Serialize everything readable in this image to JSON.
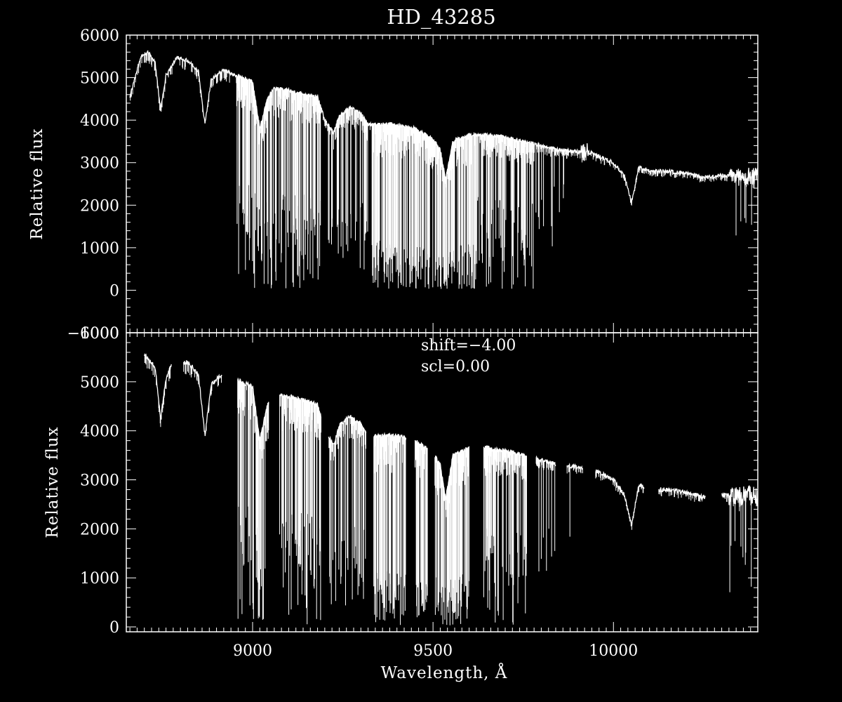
{
  "chart_data": [
    {
      "type": "line",
      "panel": "top",
      "title": "HD_43285",
      "xlabel": "",
      "ylabel": "Relative flux",
      "xlim": [
        8650,
        10400
      ],
      "ylim": [
        -1000,
        6000
      ],
      "y_tick_labels": [
        "6000",
        "5000",
        "4000",
        "3000",
        "2000",
        "1000",
        "0",
        "−1000"
      ],
      "y_ticks": [
        6000,
        5000,
        4000,
        3000,
        2000,
        1000,
        0,
        -1000
      ],
      "x_ticks": [
        9000,
        9500,
        10000
      ],
      "grid": false,
      "color": "#ffffff",
      "series": [
        {
          "continuum": [
            [
              8660,
              4550
            ],
            [
              8690,
              5500
            ],
            [
              8710,
              5600
            ],
            [
              8730,
              5350
            ],
            [
              8745,
              4250
            ],
            [
              8760,
              5050
            ],
            [
              8790,
              5480
            ],
            [
              8820,
              5400
            ],
            [
              8850,
              5150
            ],
            [
              8868,
              3900
            ],
            [
              8885,
              4950
            ],
            [
              8920,
              5180
            ],
            [
              8955,
              5050
            ],
            [
              9000,
              4900
            ],
            [
              9020,
              3800
            ],
            [
              9040,
              4500
            ],
            [
              9060,
              4750
            ],
            [
              9100,
              4700
            ],
            [
              9150,
              4600
            ],
            [
              9180,
              4550
            ],
            [
              9200,
              4000
            ],
            [
              9225,
              3700
            ],
            [
              9240,
              4100
            ],
            [
              9270,
              4300
            ],
            [
              9300,
              4150
            ],
            [
              9320,
              3900
            ],
            [
              9350,
              3900
            ],
            [
              9400,
              3900
            ],
            [
              9450,
              3800
            ],
            [
              9500,
              3550
            ],
            [
              9520,
              3300
            ],
            [
              9535,
              2600
            ],
            [
              9555,
              3500
            ],
            [
              9600,
              3650
            ],
            [
              9650,
              3650
            ],
            [
              9700,
              3600
            ],
            [
              9750,
              3500
            ],
            [
              9800,
              3400
            ],
            [
              9850,
              3300
            ],
            [
              9910,
              3250
            ],
            [
              9930,
              3250
            ],
            [
              9960,
              3150
            ],
            [
              10000,
              3000
            ],
            [
              10030,
              2700
            ],
            [
              10050,
              2050
            ],
            [
              10070,
              2900
            ],
            [
              10100,
              2800
            ],
            [
              10150,
              2800
            ],
            [
              10200,
              2750
            ],
            [
              10250,
              2650
            ],
            [
              10300,
              2700
            ],
            [
              10350,
              2650
            ],
            [
              10400,
              2700
            ]
          ],
          "gaps": [],
          "noisy_segments": [
            [
              9910,
              9930
            ],
            [
              10320,
              10400
            ]
          ]
        }
      ]
    },
    {
      "type": "line",
      "panel": "bottom",
      "title": "",
      "xlabel": "Wavelength, Å",
      "ylabel": "Relative flux",
      "xlim": [
        8650,
        10400
      ],
      "ylim": [
        -100,
        6000
      ],
      "y_tick_labels": [
        "6000",
        "5000",
        "4000",
        "3000",
        "2000",
        "1000",
        "0"
      ],
      "y_ticks": [
        6000,
        5000,
        4000,
        3000,
        2000,
        1000,
        0
      ],
      "x_tick_labels": [
        "9000",
        "9500",
        "10000"
      ],
      "x_ticks": [
        9000,
        9500,
        10000
      ],
      "grid": false,
      "color": "#ffffff",
      "annotations": [
        "shift=−4.00",
        "scl=0.00"
      ],
      "series": [
        {
          "continuum": [
            [
              8700,
              5550
            ],
            [
              8730,
              5300
            ],
            [
              8745,
              4250
            ],
            [
              8760,
              5050
            ],
            [
              8775,
              5350
            ],
            [
              8820,
              5400
            ],
            [
              8850,
              5150
            ],
            [
              8868,
              3900
            ],
            [
              8885,
              4950
            ],
            [
              8920,
              5180
            ],
            [
              8955,
              5050
            ],
            [
              9000,
              4900
            ],
            [
              9020,
              3800
            ],
            [
              9040,
              4500
            ],
            [
              9060,
              4750
            ],
            [
              9100,
              4700
            ],
            [
              9150,
              4600
            ],
            [
              9180,
              4550
            ],
            [
              9200,
              4000
            ],
            [
              9225,
              3700
            ],
            [
              9240,
              4100
            ],
            [
              9270,
              4300
            ],
            [
              9300,
              4150
            ],
            [
              9320,
              3900
            ],
            [
              9350,
              3900
            ],
            [
              9400,
              3900
            ],
            [
              9450,
              3800
            ],
            [
              9500,
              3550
            ],
            [
              9520,
              3300
            ],
            [
              9535,
              2600
            ],
            [
              9555,
              3500
            ],
            [
              9600,
              3650
            ],
            [
              9650,
              3650
            ],
            [
              9700,
              3600
            ],
            [
              9750,
              3500
            ],
            [
              9800,
              3400
            ],
            [
              9850,
              3300
            ],
            [
              9910,
              3250
            ],
            [
              9930,
              3250
            ],
            [
              9960,
              3150
            ],
            [
              10000,
              3000
            ],
            [
              10030,
              2700
            ],
            [
              10050,
              2050
            ],
            [
              10070,
              2900
            ],
            [
              10100,
              2800
            ],
            [
              10150,
              2800
            ],
            [
              10200,
              2750
            ],
            [
              10250,
              2650
            ],
            [
              10300,
              2700
            ],
            [
              10350,
              2650
            ],
            [
              10400,
              2700
            ]
          ],
          "gaps": [
            [
              8775,
              8808
            ],
            [
              8915,
              8958
            ],
            [
              9045,
              9075
            ],
            [
              9190,
              9210
            ],
            [
              9315,
              9335
            ],
            [
              9425,
              9450
            ],
            [
              9485,
              9505
            ],
            [
              9600,
              9640
            ],
            [
              9760,
              9785
            ],
            [
              9840,
              9870
            ],
            [
              9915,
              9950
            ],
            [
              10085,
              10125
            ],
            [
              10255,
              10300
            ]
          ],
          "noisy_segments": [
            [
              10320,
              10400
            ]
          ]
        }
      ]
    }
  ]
}
